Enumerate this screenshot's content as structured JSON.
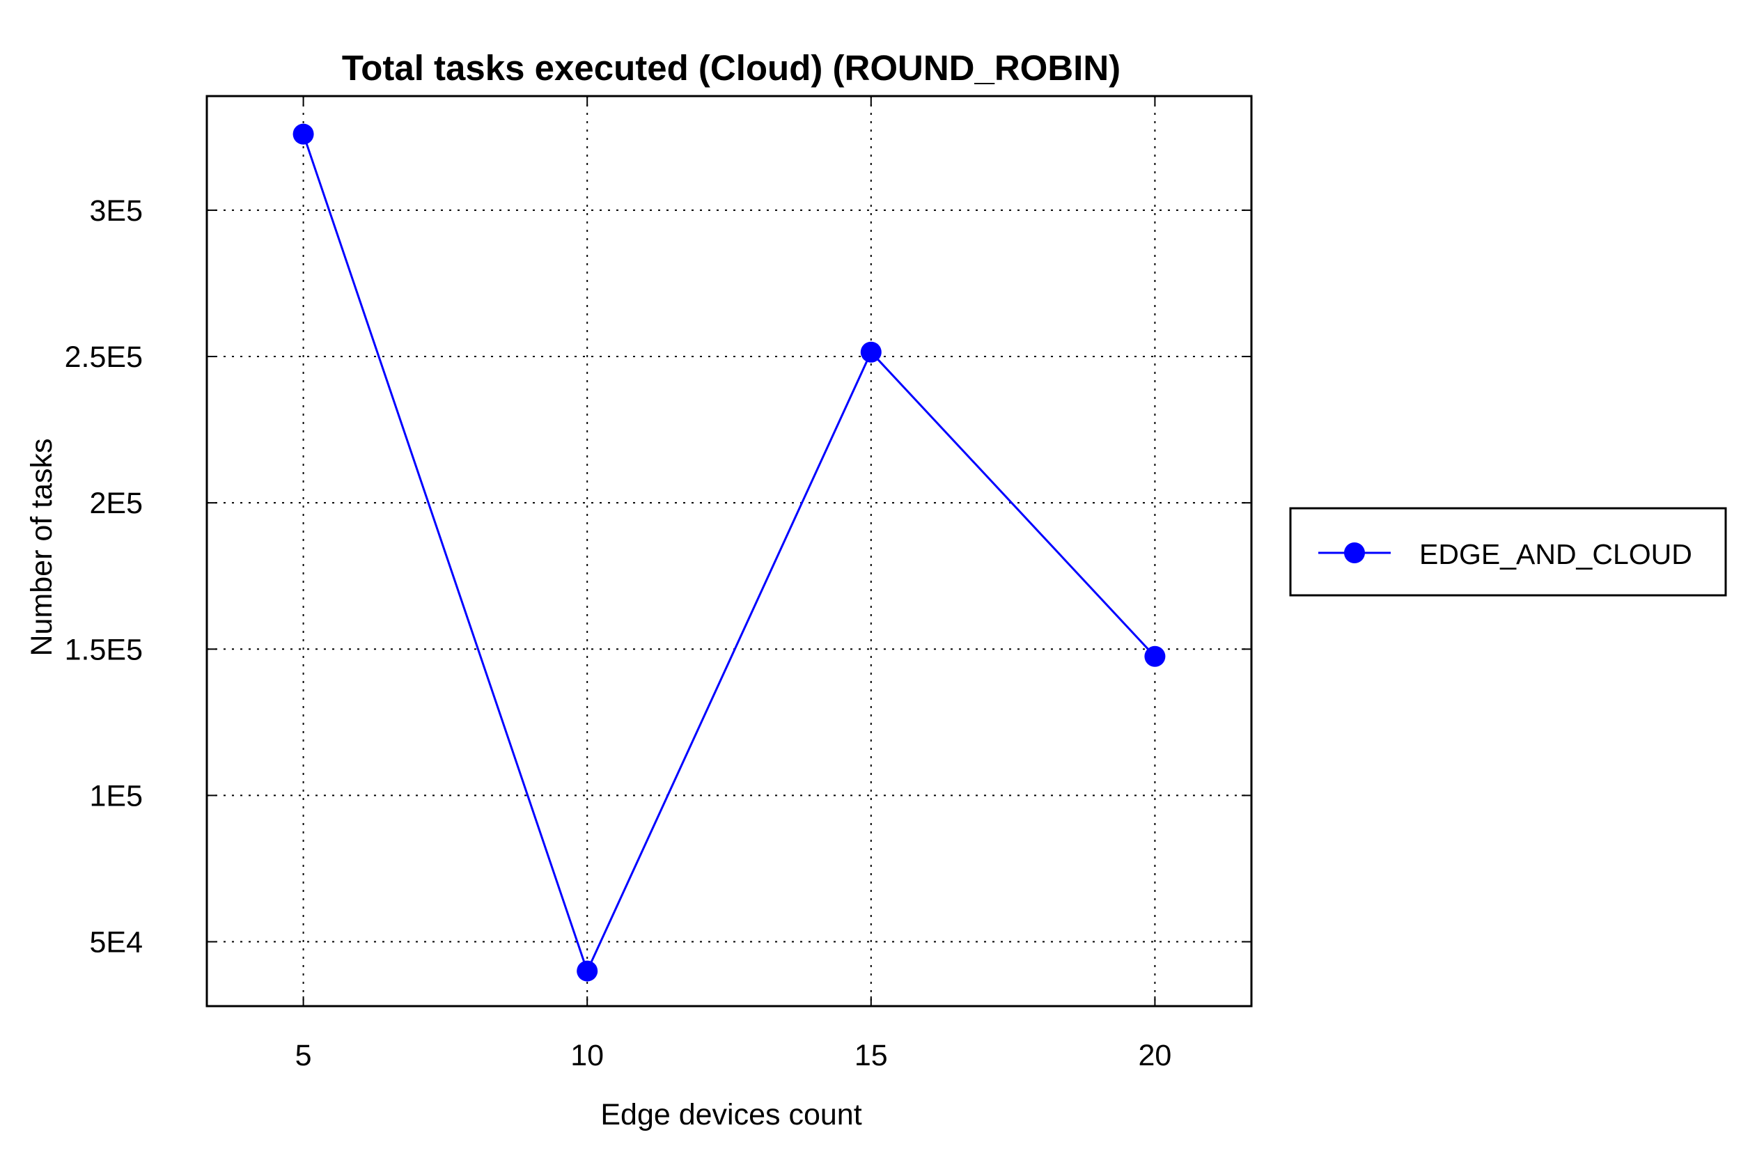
{
  "chart_data": {
    "type": "line",
    "title": "Total tasks executed (Cloud) (ROUND_ROBIN)",
    "xlabel": "Edge devices count",
    "ylabel": "Number of tasks",
    "x": [
      5,
      10,
      15,
      20
    ],
    "x_ticks": [
      5,
      10,
      15,
      20
    ],
    "x_tick_labels": [
      "5",
      "10",
      "15",
      "20"
    ],
    "xlim": [
      3.3,
      21.7
    ],
    "y_ticks": [
      50000,
      100000,
      150000,
      200000,
      250000,
      300000
    ],
    "y_tick_labels": [
      "5E4",
      "1E5",
      "1.5E5",
      "2E5",
      "2.5E5",
      "3E5"
    ],
    "ylim": [
      28000,
      339000
    ],
    "grid": true,
    "legend_position": "outside-right",
    "series": [
      {
        "name": "EDGE_AND_CLOUD",
        "color": "#0000ff",
        "marker": "circle",
        "values": [
          326000,
          40000,
          251500,
          147500
        ]
      }
    ]
  }
}
